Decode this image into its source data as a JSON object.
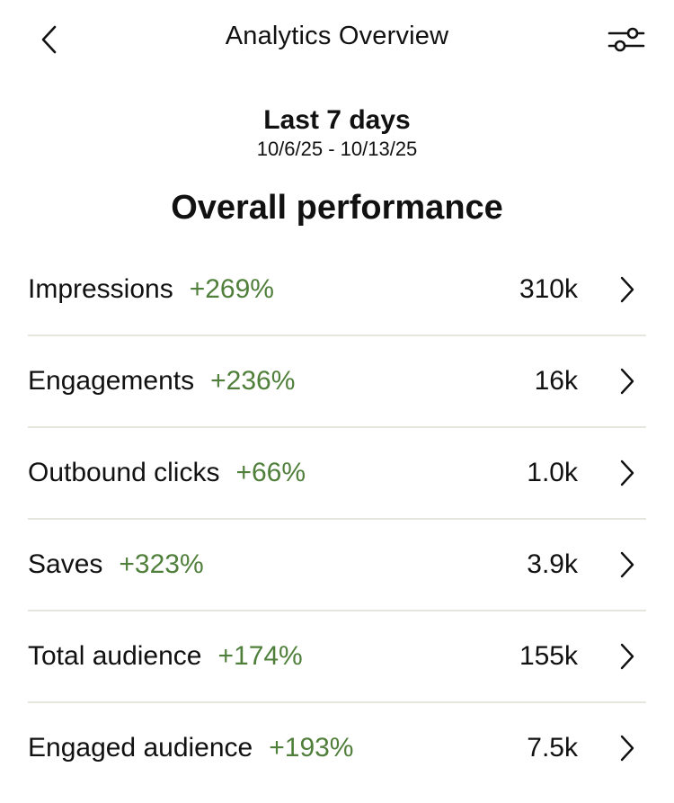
{
  "header": {
    "title": "Analytics Overview",
    "back_icon": "chevron-left-icon",
    "filter_icon": "sliders-icon"
  },
  "date_range": {
    "label": "Last 7 days",
    "dates": "10/6/25 - 10/13/25"
  },
  "section_title": "Overall performance",
  "colors": {
    "positive_change": "#4f7f3a",
    "divider": "#e6e6df"
  },
  "metrics": [
    {
      "name": "Impressions",
      "change": "+269%",
      "value": "310k"
    },
    {
      "name": "Engagements",
      "change": "+236%",
      "value": "16k"
    },
    {
      "name": "Outbound clicks",
      "change": "+66%",
      "value": "1.0k"
    },
    {
      "name": "Saves",
      "change": "+323%",
      "value": "3.9k"
    },
    {
      "name": "Total audience",
      "change": "+174%",
      "value": "155k"
    },
    {
      "name": "Engaged audience",
      "change": "+193%",
      "value": "7.5k"
    }
  ]
}
